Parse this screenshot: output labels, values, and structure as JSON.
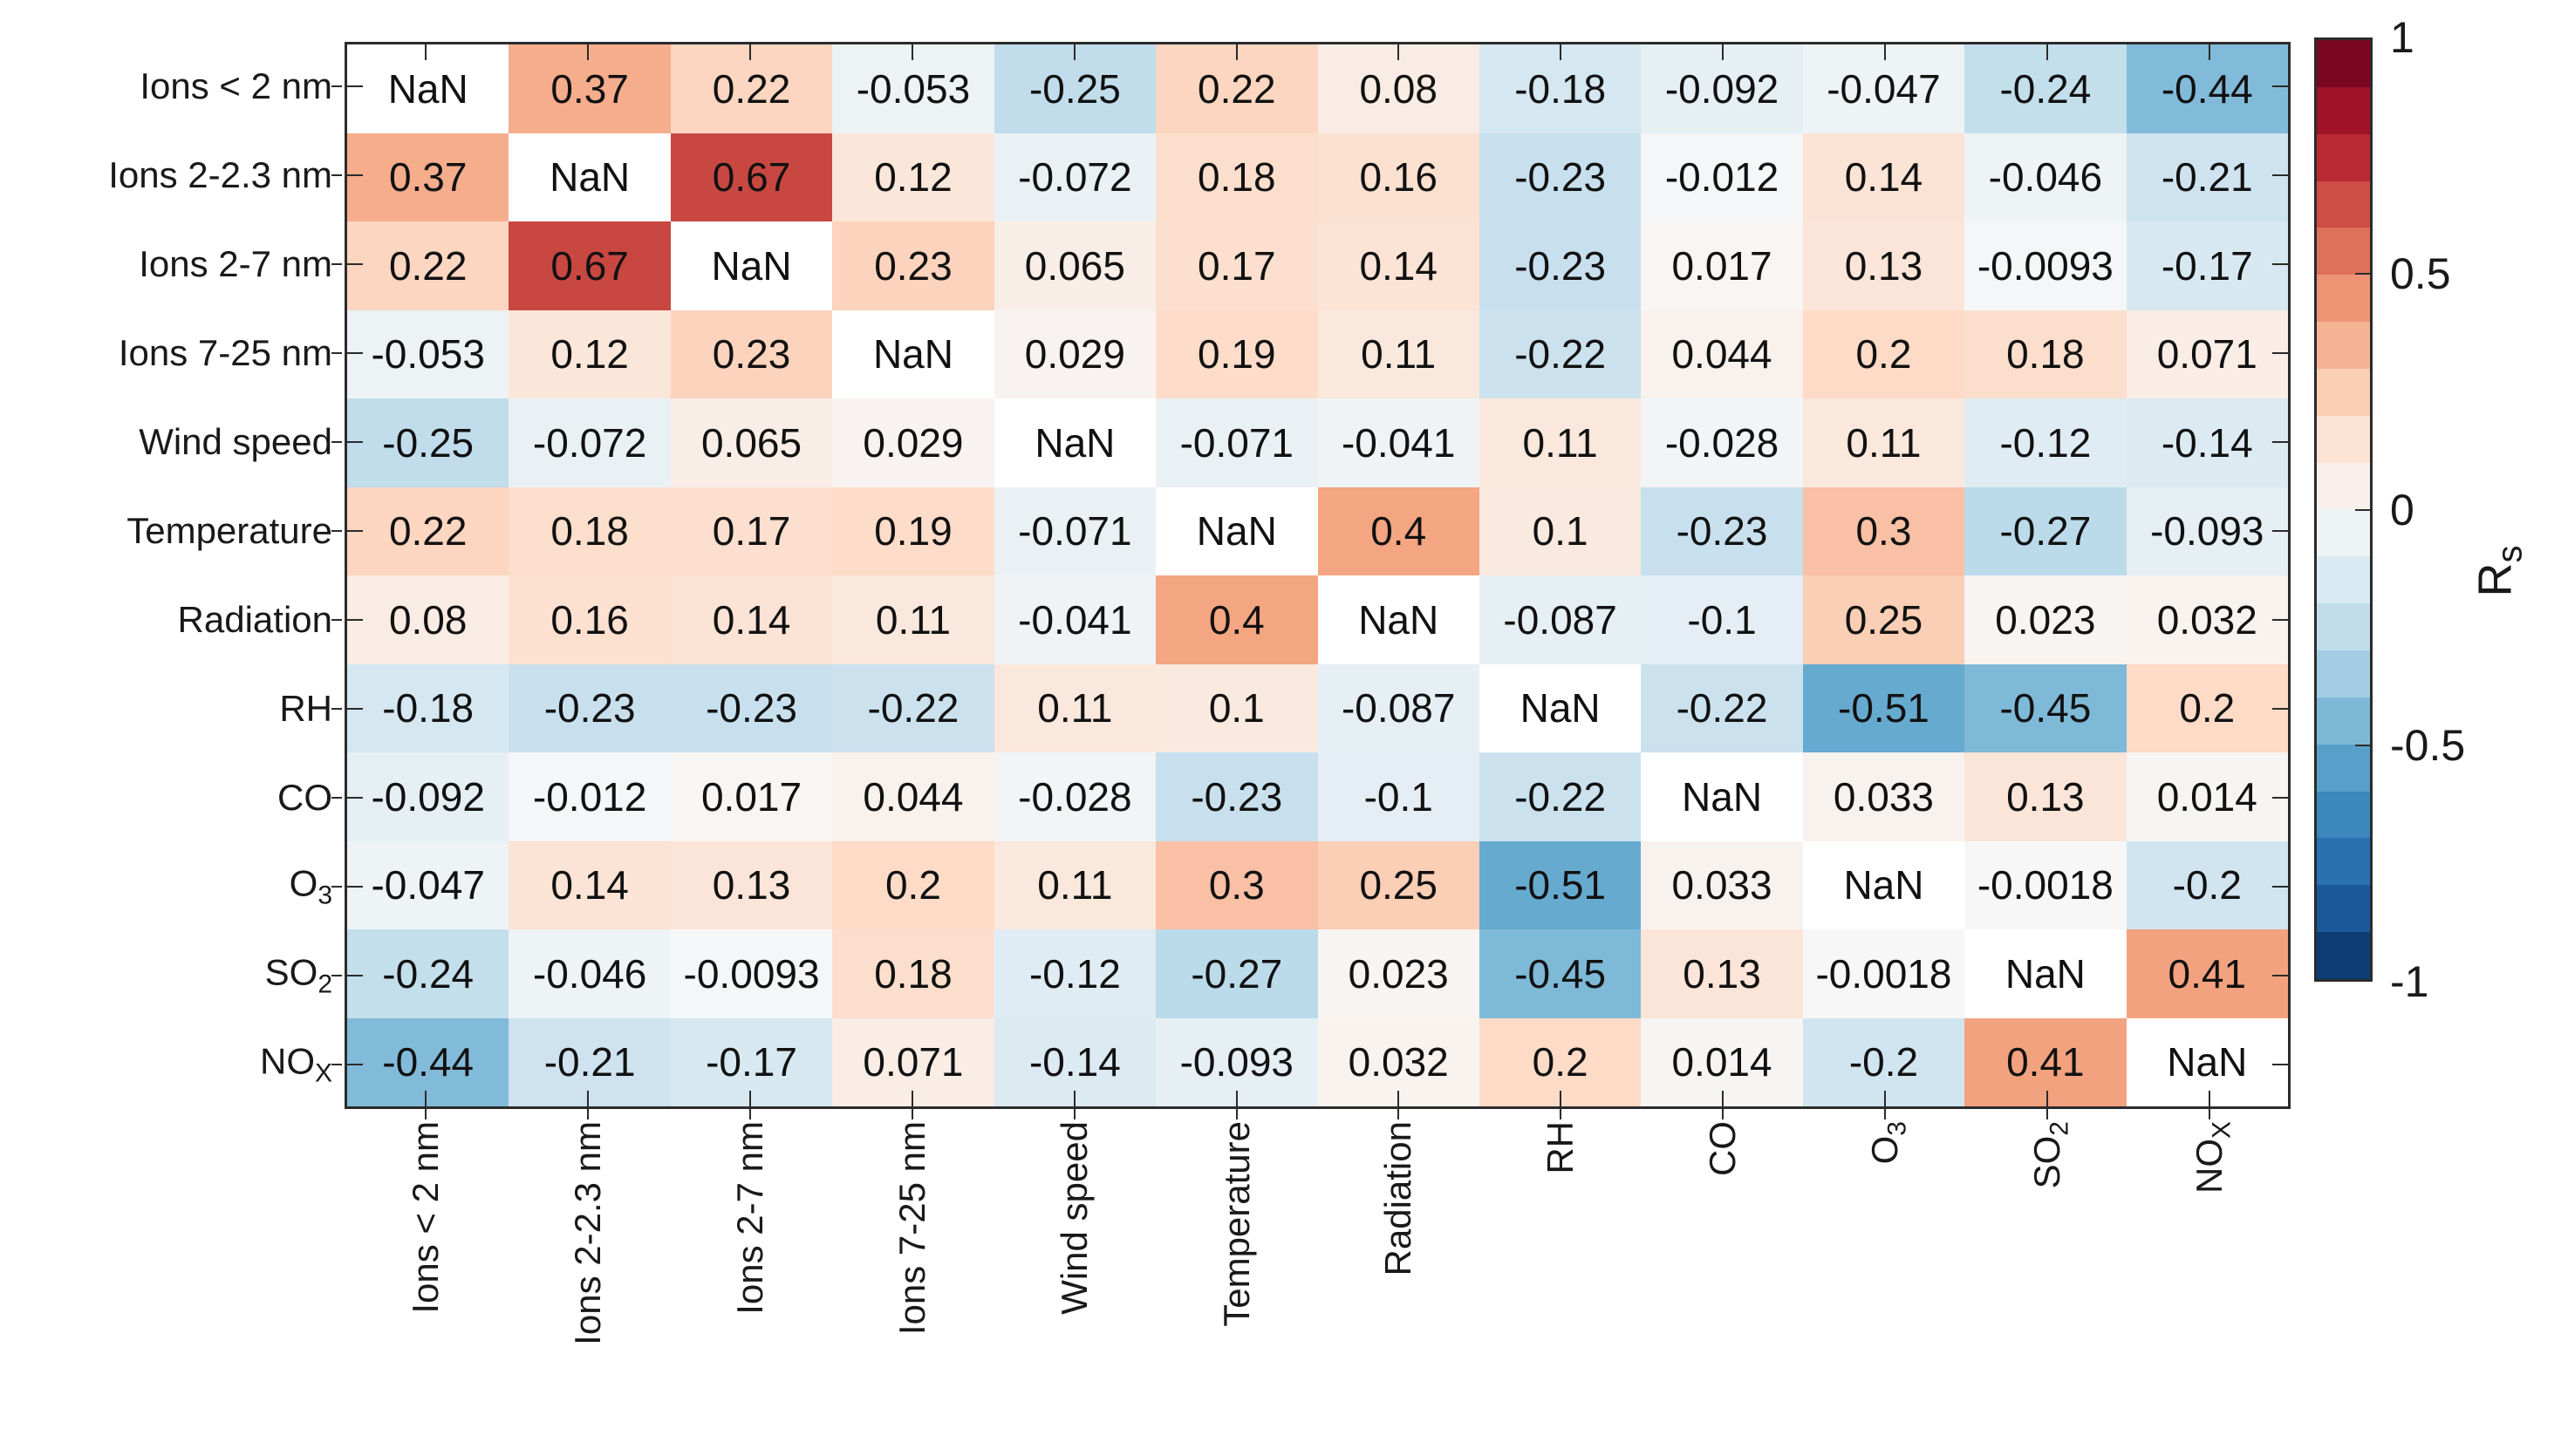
{
  "figure": {
    "background": "#ffffff",
    "text_color": "#191919",
    "axis_color": "#2b2b2b"
  },
  "chart_data": {
    "type": "heatmap",
    "title": "",
    "categories": [
      {
        "main": "Ions < 2 nm",
        "sub": ""
      },
      {
        "main": "Ions 2-2.3 nm",
        "sub": ""
      },
      {
        "main": "Ions 2-7 nm",
        "sub": ""
      },
      {
        "main": "Ions 7-25 nm",
        "sub": ""
      },
      {
        "main": "Wind speed",
        "sub": ""
      },
      {
        "main": "Temperature",
        "sub": ""
      },
      {
        "main": "Radiation",
        "sub": ""
      },
      {
        "main": "RH",
        "sub": ""
      },
      {
        "main": "CO",
        "sub": ""
      },
      {
        "main": "O",
        "sub": "3"
      },
      {
        "main": "SO",
        "sub": "2"
      },
      {
        "main": "NO",
        "sub": "X"
      }
    ],
    "values": [
      [
        null,
        0.37,
        0.22,
        -0.053,
        -0.25,
        0.22,
        0.08,
        -0.18,
        -0.092,
        -0.047,
        -0.24,
        -0.44
      ],
      [
        0.37,
        null,
        0.67,
        0.12,
        -0.072,
        0.18,
        0.16,
        -0.23,
        -0.012,
        0.14,
        -0.046,
        -0.21
      ],
      [
        0.22,
        0.67,
        null,
        0.23,
        0.065,
        0.17,
        0.14,
        -0.23,
        0.017,
        0.13,
        -0.0093,
        -0.17
      ],
      [
        -0.053,
        0.12,
        0.23,
        null,
        0.029,
        0.19,
        0.11,
        -0.22,
        0.044,
        0.2,
        0.18,
        0.071
      ],
      [
        -0.25,
        -0.072,
        0.065,
        0.029,
        null,
        -0.071,
        -0.041,
        0.11,
        -0.028,
        0.11,
        -0.12,
        -0.14
      ],
      [
        0.22,
        0.18,
        0.17,
        0.19,
        -0.071,
        null,
        0.4,
        0.1,
        -0.23,
        0.3,
        -0.27,
        -0.093
      ],
      [
        0.08,
        0.16,
        0.14,
        0.11,
        -0.041,
        0.4,
        null,
        -0.087,
        -0.1,
        0.25,
        0.023,
        0.032
      ],
      [
        -0.18,
        -0.23,
        -0.23,
        -0.22,
        0.11,
        0.1,
        -0.087,
        null,
        -0.22,
        -0.51,
        -0.45,
        0.2
      ],
      [
        -0.092,
        -0.012,
        0.017,
        0.044,
        -0.028,
        -0.23,
        -0.1,
        -0.22,
        null,
        0.033,
        0.13,
        0.014
      ],
      [
        -0.047,
        0.14,
        0.13,
        0.2,
        0.11,
        0.3,
        0.25,
        -0.51,
        0.033,
        null,
        -0.0018,
        -0.2
      ],
      [
        -0.24,
        -0.046,
        -0.0093,
        0.18,
        -0.12,
        -0.27,
        0.023,
        -0.45,
        0.13,
        -0.0018,
        null,
        0.41
      ],
      [
        -0.44,
        -0.21,
        -0.17,
        0.071,
        -0.14,
        -0.093,
        0.032,
        0.2,
        0.014,
        -0.2,
        0.41,
        null
      ]
    ],
    "values_display": [
      [
        "NaN",
        "0.37",
        "0.22",
        "-0.053",
        "-0.25",
        "0.22",
        "0.08",
        "-0.18",
        "-0.092",
        "-0.047",
        "-0.24",
        "-0.44"
      ],
      [
        "0.37",
        "NaN",
        "0.67",
        "0.12",
        "-0.072",
        "0.18",
        "0.16",
        "-0.23",
        "-0.012",
        "0.14",
        "-0.046",
        "-0.21"
      ],
      [
        "0.22",
        "0.67",
        "NaN",
        "0.23",
        "0.065",
        "0.17",
        "0.14",
        "-0.23",
        "0.017",
        "0.13",
        "-0.0093",
        "-0.17"
      ],
      [
        "-0.053",
        "0.12",
        "0.23",
        "NaN",
        "0.029",
        "0.19",
        "0.11",
        "-0.22",
        "0.044",
        "0.2",
        "0.18",
        "0.071"
      ],
      [
        "-0.25",
        "-0.072",
        "0.065",
        "0.029",
        "NaN",
        "-0.071",
        "-0.041",
        "0.11",
        "-0.028",
        "0.11",
        "-0.12",
        "-0.14"
      ],
      [
        "0.22",
        "0.18",
        "0.17",
        "0.19",
        "-0.071",
        "NaN",
        "0.4",
        "0.1",
        "-0.23",
        "0.3",
        "-0.27",
        "-0.093"
      ],
      [
        "0.08",
        "0.16",
        "0.14",
        "0.11",
        "-0.041",
        "0.4",
        "NaN",
        "-0.087",
        "-0.1",
        "0.25",
        "0.023",
        "0.032"
      ],
      [
        "-0.18",
        "-0.23",
        "-0.23",
        "-0.22",
        "0.11",
        "0.1",
        "-0.087",
        "NaN",
        "-0.22",
        "-0.51",
        "-0.45",
        "0.2"
      ],
      [
        "-0.092",
        "-0.012",
        "0.017",
        "0.044",
        "-0.028",
        "-0.23",
        "-0.1",
        "-0.22",
        "NaN",
        "0.033",
        "0.13",
        "0.014"
      ],
      [
        "-0.047",
        "0.14",
        "0.13",
        "0.2",
        "0.11",
        "0.3",
        "0.25",
        "-0.51",
        "0.033",
        "NaN",
        "-0.0018",
        "-0.2"
      ],
      [
        "-0.24",
        "-0.046",
        "-0.0093",
        "0.18",
        "-0.12",
        "-0.27",
        "0.023",
        "-0.45",
        "0.13",
        "-0.0018",
        "NaN",
        "0.41"
      ],
      [
        "-0.44",
        "-0.21",
        "-0.17",
        "0.071",
        "-0.14",
        "-0.093",
        "0.032",
        "0.2",
        "0.014",
        "-0.2",
        "0.41",
        "NaN"
      ]
    ],
    "nan_color": "#ffffff",
    "grid": false,
    "colormap_name": "RdBu (red = +1, blue = -1)",
    "colormap_stops": [
      {
        "v": -1.0,
        "c": "#053061"
      },
      {
        "v": -0.8,
        "c": "#2166ac"
      },
      {
        "v": -0.6,
        "c": "#4393c3"
      },
      {
        "v": -0.4,
        "c": "#92c5de"
      },
      {
        "v": -0.2,
        "c": "#d1e5f0"
      },
      {
        "v": 0.0,
        "c": "#f7f7f7"
      },
      {
        "v": 0.2,
        "c": "#fddbc7"
      },
      {
        "v": 0.4,
        "c": "#f4a582"
      },
      {
        "v": 0.6,
        "c": "#d6604d"
      },
      {
        "v": 0.8,
        "c": "#b2182b"
      },
      {
        "v": 1.0,
        "c": "#67001f"
      }
    ],
    "colorbar": {
      "position": "right",
      "label_main": "R",
      "label_sub": "s",
      "range": [
        -1,
        1
      ],
      "n_bands": 20,
      "ticks": [
        "1",
        "0.5",
        "0",
        "-0.5",
        "-1"
      ],
      "tick_values": [
        1,
        0.5,
        0,
        -0.5,
        -1
      ]
    }
  }
}
